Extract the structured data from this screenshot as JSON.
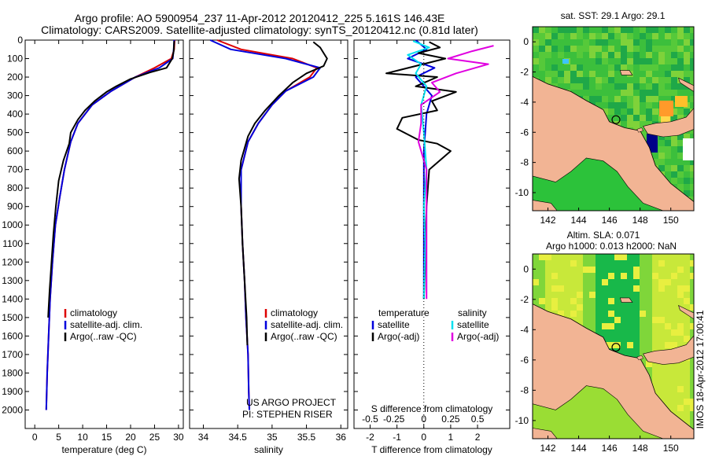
{
  "header": {
    "line1": "Argo profile: AO 5900954_237 11-Apr-2012 20120412_225 5.161S 146.43E",
    "line2": "Climatology: CARS2009. Satellite-adjusted climatology: synTS_20120412.nc (0.81d later)"
  },
  "chart_data": [
    {
      "type": "line",
      "name": "temperature-profile",
      "xlabel": "temperature (deg C)",
      "ylabel": "",
      "xlim": [
        -2,
        31
      ],
      "ylim": [
        2100,
        0
      ],
      "x_ticks": [
        0,
        5,
        10,
        15,
        20,
        25,
        30
      ],
      "y_ticks": [
        0,
        100,
        200,
        300,
        400,
        500,
        600,
        700,
        800,
        900,
        1000,
        1100,
        1200,
        1300,
        1400,
        1500,
        1600,
        1700,
        1800,
        1900,
        2000
      ],
      "legend": [
        "climatology",
        "satellite-adj. clim.",
        "Argo(..raw -QC)"
      ],
      "series": [
        {
          "name": "climatology",
          "color": "#dd0000",
          "points": [
            [
              29.2,
              0
            ],
            [
              29.1,
              50
            ],
            [
              28.5,
              100
            ],
            [
              25,
              150
            ],
            [
              21,
              200
            ],
            [
              16,
              275
            ],
            [
              12,
              350
            ],
            [
              9,
              450
            ],
            [
              7.5,
              550
            ],
            [
              6.2,
              700
            ],
            [
              5.2,
              850
            ],
            [
              4.3,
              1000
            ],
            [
              3.7,
              1200
            ],
            [
              3.2,
              1400
            ],
            [
              2.9,
              1600
            ],
            [
              2.6,
              1800
            ],
            [
              2.4,
              2000
            ]
          ]
        },
        {
          "name": "satellite-adj. clim.",
          "color": "#0000dd",
          "points": [
            [
              29.1,
              0
            ],
            [
              29.0,
              50
            ],
            [
              28.8,
              100
            ],
            [
              26,
              150
            ],
            [
              21,
              200
            ],
            [
              16,
              275
            ],
            [
              12,
              350
            ],
            [
              9,
              450
            ],
            [
              7.5,
              550
            ],
            [
              6.2,
              700
            ],
            [
              5.2,
              850
            ],
            [
              4.3,
              1000
            ],
            [
              3.7,
              1200
            ],
            [
              3.2,
              1400
            ],
            [
              2.9,
              1600
            ],
            [
              2.6,
              1800
            ],
            [
              2.4,
              2000
            ]
          ]
        },
        {
          "name": "Argo(..raw -QC)",
          "color": "#000000",
          "points": [
            [
              29.1,
              5
            ],
            [
              29.0,
              60
            ],
            [
              28.7,
              100
            ],
            [
              27.5,
              150
            ],
            [
              24,
              175
            ],
            [
              20,
              210
            ],
            [
              17,
              250
            ],
            [
              15,
              280
            ],
            [
              12.5,
              330
            ],
            [
              10.5,
              380
            ],
            [
              9,
              430
            ],
            [
              7.5,
              500
            ],
            [
              7.2,
              560
            ],
            [
              6,
              650
            ],
            [
              5,
              760
            ],
            [
              4.4,
              900
            ],
            [
              3.9,
              1050
            ],
            [
              3.5,
              1200
            ],
            [
              3.1,
              1350
            ],
            [
              2.9,
              1450
            ],
            [
              2.8,
              1500
            ]
          ]
        }
      ]
    },
    {
      "type": "line",
      "name": "salinity-profile",
      "xlabel": "salinity",
      "xlim": [
        33.8,
        36.1
      ],
      "ylim": [
        2100,
        0
      ],
      "x_ticks": [
        34,
        34.5,
        35,
        35.5,
        36
      ],
      "legend": [
        "climatology",
        "satellite-adj. clim.",
        "Argo(..raw -QC)"
      ],
      "annotation": [
        "US ARGO PROJECT",
        "PI: STEPHEN RISER"
      ],
      "series": [
        {
          "name": "climatology",
          "color": "#dd0000",
          "points": [
            [
              34.2,
              0
            ],
            [
              34.55,
              50
            ],
            [
              35.3,
              100
            ],
            [
              35.65,
              150
            ],
            [
              35.55,
              200
            ],
            [
              35.2,
              275
            ],
            [
              35.0,
              350
            ],
            [
              34.8,
              450
            ],
            [
              34.65,
              550
            ],
            [
              34.55,
              700
            ],
            [
              34.55,
              900
            ],
            [
              34.57,
              1100
            ],
            [
              34.6,
              1300
            ],
            [
              34.62,
              1500
            ],
            [
              34.65,
              1700
            ],
            [
              34.66,
              1900
            ],
            [
              34.67,
              2000
            ]
          ]
        },
        {
          "name": "satellite-adj. clim.",
          "color": "#0000dd",
          "points": [
            [
              34.1,
              0
            ],
            [
              34.4,
              50
            ],
            [
              35.2,
              100
            ],
            [
              35.7,
              150
            ],
            [
              35.6,
              200
            ],
            [
              35.2,
              275
            ],
            [
              35.0,
              350
            ],
            [
              34.8,
              450
            ],
            [
              34.65,
              550
            ],
            [
              34.55,
              700
            ],
            [
              34.55,
              900
            ],
            [
              34.57,
              1100
            ],
            [
              34.6,
              1300
            ],
            [
              34.62,
              1500
            ],
            [
              34.65,
              1700
            ],
            [
              34.66,
              1900
            ],
            [
              34.67,
              2000
            ]
          ]
        },
        {
          "name": "Argo(..raw -QC)",
          "color": "#000000",
          "points": [
            [
              35.6,
              10
            ],
            [
              35.7,
              40
            ],
            [
              35.75,
              70
            ],
            [
              35.8,
              100
            ],
            [
              35.75,
              140
            ],
            [
              35.5,
              180
            ],
            [
              35.3,
              230
            ],
            [
              35.1,
              300
            ],
            [
              34.9,
              380
            ],
            [
              34.75,
              450
            ],
            [
              34.65,
              520
            ],
            [
              34.55,
              650
            ],
            [
              34.52,
              750
            ],
            [
              34.55,
              900
            ],
            [
              34.57,
              1100
            ],
            [
              34.6,
              1300
            ],
            [
              34.63,
              1500
            ],
            [
              34.64,
              1650
            ]
          ]
        }
      ]
    },
    {
      "type": "line",
      "name": "difference-profile",
      "xlabel": "T difference from climatology",
      "xlabel2": "S difference from climatology",
      "xlim": [
        -2.6,
        3.2
      ],
      "ylim": [
        2100,
        0
      ],
      "x_ticks": [
        -2,
        -1,
        0,
        1,
        2
      ],
      "s_ticks": [
        "-0.5",
        "-0.25",
        "0",
        "0.25",
        "0.5"
      ],
      "legend_title_left": "temperature",
      "legend_title_right": "salinity",
      "legend_left": [
        "satellite",
        "Argo(-adj)"
      ],
      "legend_right": [
        "satellite",
        "Argo(-adj)"
      ],
      "series": [
        {
          "name": "temperature satellite",
          "color": "#0000dd",
          "points": [
            [
              -0.3,
              0
            ],
            [
              0.1,
              50
            ],
            [
              -0.6,
              100
            ],
            [
              0.4,
              150
            ],
            [
              -0.3,
              200
            ],
            [
              0.3,
              300
            ],
            [
              0.1,
              400
            ],
            [
              0,
              600
            ],
            [
              0,
              800
            ],
            [
              0,
              1000
            ],
            [
              0,
              1400
            ]
          ]
        },
        {
          "name": "temperature Argo(-adj)",
          "color": "#000000",
          "points": [
            [
              0.2,
              10
            ],
            [
              0.6,
              40
            ],
            [
              -0.2,
              70
            ],
            [
              0.8,
              100
            ],
            [
              -1.4,
              180
            ],
            [
              0.5,
              200
            ],
            [
              -0.3,
              250
            ],
            [
              1.2,
              280
            ],
            [
              0.3,
              330
            ],
            [
              0.5,
              380
            ],
            [
              -0.8,
              420
            ],
            [
              -1.0,
              480
            ],
            [
              -0.2,
              540
            ],
            [
              0.5,
              560
            ],
            [
              1.0,
              600
            ],
            [
              0.2,
              700
            ],
            [
              0.1,
              900
            ],
            [
              0.05,
              1200
            ],
            [
              0,
              1400
            ]
          ]
        },
        {
          "name": "salinity satellite",
          "color": "#00e0f0",
          "points": [
            [
              -0.4,
              5
            ],
            [
              0.2,
              40
            ],
            [
              -0.6,
              80
            ],
            [
              -0.1,
              130
            ],
            [
              -0.3,
              180
            ],
            [
              0.1,
              250
            ],
            [
              -0.1,
              350
            ],
            [
              0,
              500
            ],
            [
              0.1,
              700
            ],
            [
              0,
              900
            ],
            [
              0.05,
              1100
            ],
            [
              0,
              1400
            ]
          ]
        },
        {
          "name": "salinity Argo(-adj)",
          "color": "#e000e0",
          "points": [
            [
              2.6,
              30
            ],
            [
              1.8,
              60
            ],
            [
              0.9,
              100
            ],
            [
              2.4,
              130
            ],
            [
              1.2,
              180
            ],
            [
              0.3,
              230
            ],
            [
              0.6,
              280
            ],
            [
              -0.1,
              350
            ],
            [
              -0.1,
              450
            ],
            [
              -0.2,
              550
            ],
            [
              0.1,
              700
            ],
            [
              0.1,
              900
            ],
            [
              0.1,
              1100
            ],
            [
              0.1,
              1400
            ]
          ]
        }
      ]
    },
    {
      "type": "heatmap",
      "name": "sst-map",
      "title": "sat. SST: 29.1  Argo: 29.1",
      "x_ticks": [
        142,
        144,
        146,
        148,
        150
      ],
      "y_ticks": [
        0,
        -2,
        -4,
        -6,
        -8,
        -10
      ],
      "xlim": [
        141,
        151.5
      ],
      "ylim": [
        -11.2,
        1
      ],
      "argo_position": [
        146.43,
        -5.161
      ]
    },
    {
      "type": "heatmap",
      "name": "sla-map",
      "title": "Altim. SLA: 0.071",
      "title2": "Argo h1000: 0.013  h2000: NaN",
      "x_ticks": [
        142,
        144,
        146,
        148,
        150
      ],
      "y_ticks": [
        0,
        -2,
        -4,
        -6,
        -8,
        -10
      ],
      "xlim": [
        141,
        151.5
      ],
      "ylim": [
        -11.2,
        1
      ],
      "argo_position": [
        146.43,
        -5.161
      ]
    }
  ],
  "footer": {
    "vertical_stamp": "IMOS 18-Apr-2012 17:00:41"
  },
  "colors": {
    "red": "#dd0000",
    "blue": "#0000dd",
    "black": "#000000",
    "cyan": "#00e0f0",
    "magenta": "#e000e0",
    "land": "#f2b494"
  }
}
